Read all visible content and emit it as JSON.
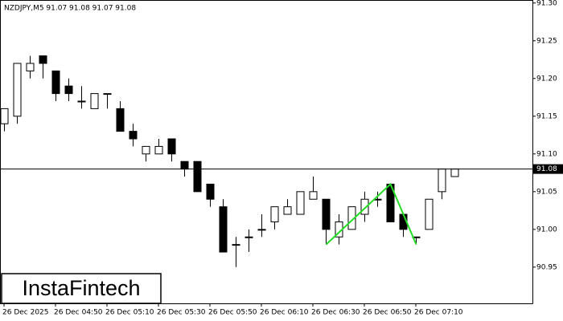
{
  "chart_data": {
    "type": "candlestick",
    "header": "NZDJPY,M5  91.07 91.08 91.07 91.08",
    "watermark": "InstaFintech",
    "categories": [
      "26 Dec 2025",
      null,
      null,
      null,
      "26 Dec 04:50",
      null,
      null,
      null,
      "26 Dec 05:10",
      null,
      null,
      null,
      "26 Dec 05:30",
      null,
      null,
      null,
      "26 Dec 05:50",
      null,
      null,
      null,
      "26 Dec 06:10",
      null,
      null,
      null,
      "26 Dec 06:30",
      null,
      null,
      null,
      "26 Dec 06:50",
      null,
      null,
      null,
      "26 Dec 07:10",
      null,
      null,
      null
    ],
    "open": [
      91.14,
      91.15,
      91.21,
      91.23,
      91.21,
      91.19,
      91.17,
      91.16,
      91.18,
      91.16,
      91.13,
      91.1,
      91.1,
      91.12,
      91.09,
      91.09,
      91.06,
      91.03,
      90.98,
      90.99,
      91.0,
      91.01,
      91.02,
      91.02,
      91.04,
      91.04,
      90.99,
      91.0,
      91.02,
      91.04,
      91.06,
      91.02,
      90.99,
      91.0,
      91.05,
      91.07
    ],
    "high": [
      91.16,
      91.22,
      91.23,
      91.23,
      91.21,
      91.2,
      91.19,
      91.18,
      91.18,
      91.17,
      91.14,
      91.11,
      91.12,
      91.12,
      91.09,
      91.09,
      91.06,
      91.04,
      90.99,
      91.0,
      91.02,
      91.03,
      91.04,
      91.05,
      91.07,
      91.04,
      91.02,
      91.03,
      91.05,
      91.05,
      91.06,
      91.02,
      90.99,
      91.04,
      91.08,
      91.08
    ],
    "low": [
      91.13,
      91.14,
      91.2,
      91.2,
      91.17,
      91.17,
      91.16,
      91.16,
      91.16,
      91.13,
      91.11,
      91.09,
      91.1,
      91.09,
      91.07,
      91.05,
      91.03,
      90.97,
      90.95,
      90.97,
      90.99,
      91.0,
      91.02,
      91.02,
      91.04,
      90.98,
      90.98,
      91.0,
      91.01,
      91.03,
      91.01,
      90.99,
      90.98,
      91.0,
      91.04,
      91.07
    ],
    "close": [
      91.16,
      91.22,
      91.22,
      91.22,
      91.18,
      91.18,
      91.17,
      91.18,
      91.18,
      91.13,
      91.12,
      91.11,
      91.11,
      91.1,
      91.08,
      91.05,
      91.04,
      90.97,
      90.98,
      90.99,
      91.0,
      91.03,
      91.03,
      91.05,
      91.05,
      91.0,
      91.01,
      91.03,
      91.04,
      91.04,
      91.01,
      91.0,
      90.99,
      91.04,
      91.08,
      91.08
    ],
    "up_color": "#ffffff",
    "down_color": "#000000",
    "pattern": {
      "color": "#22dd22",
      "values": [
        null,
        null,
        null,
        null,
        null,
        null,
        null,
        null,
        null,
        null,
        null,
        null,
        null,
        null,
        null,
        null,
        null,
        null,
        null,
        null,
        null,
        null,
        null,
        null,
        null,
        90.98,
        null,
        null,
        null,
        null,
        91.06,
        null,
        90.98,
        null,
        null,
        null
      ]
    },
    "last_price": 91.08,
    "ylim": [
      90.902,
      91.304
    ],
    "yticks": [
      {
        "value": 91.3,
        "label": "91.30"
      },
      91.25,
      {
        "value": 91.2,
        "label": "91.20"
      },
      91.15,
      {
        "value": 91.1,
        "label": "91.10"
      },
      91.05,
      {
        "value": 91.0,
        "label": "91.00"
      },
      90.95
    ],
    "grid": false
  }
}
